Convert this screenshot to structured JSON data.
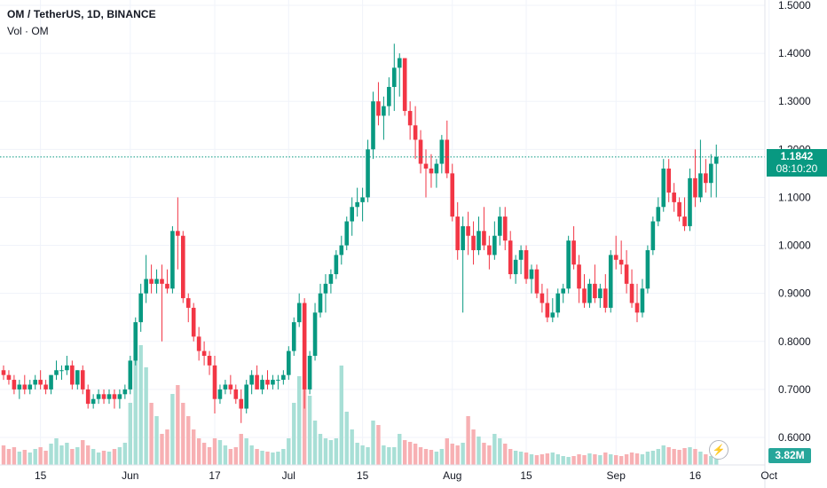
{
  "header": {
    "symbol_line": "OM / TetherUS, 1D, BINANCE",
    "volume_line": "Vol · OM"
  },
  "last_price": {
    "price": "1.1842",
    "countdown": "08:10:20",
    "color": "#089981"
  },
  "volume_badge": "3.82M",
  "icons": {
    "alert": "lightning-bolt-icon"
  },
  "colors": {
    "up": "#089981",
    "down": "#f23645",
    "vol_up": "#a8dfd6",
    "vol_down": "#f7b0b3",
    "last_line": "#089981"
  },
  "chart_data": {
    "type": "candlestick",
    "y_ticks": [
      "1.5000",
      "1.4000",
      "1.3000",
      "1.2000",
      "1.1000",
      "1.0000",
      "0.9000",
      "0.8000",
      "0.7000",
      "0.6000"
    ],
    "y_tick_values": [
      1.5,
      1.4,
      1.3,
      1.2,
      1.1,
      1.0,
      0.9,
      0.8,
      0.7,
      0.6
    ],
    "ylim": [
      0.58,
      1.52
    ],
    "x_ticks": [
      {
        "label": "15",
        "index": 7
      },
      {
        "label": "Jun",
        "index": 24
      },
      {
        "label": "17",
        "index": 40
      },
      {
        "label": "Jul",
        "index": 54
      },
      {
        "label": "15",
        "index": 68
      },
      {
        "label": "Aug",
        "index": 85
      },
      {
        "label": "15",
        "index": 99
      },
      {
        "label": "Sep",
        "index": 116
      },
      {
        "label": "16",
        "index": 131
      },
      {
        "label": "Oct",
        "index": 145
      }
    ],
    "candles": [
      [
        0.74,
        0.75,
        0.72,
        0.73
      ],
      [
        0.73,
        0.74,
        0.71,
        0.72
      ],
      [
        0.72,
        0.73,
        0.69,
        0.7
      ],
      [
        0.7,
        0.72,
        0.68,
        0.71
      ],
      [
        0.71,
        0.73,
        0.69,
        0.7
      ],
      [
        0.7,
        0.72,
        0.69,
        0.71
      ],
      [
        0.71,
        0.73,
        0.7,
        0.72
      ],
      [
        0.72,
        0.74,
        0.7,
        0.71
      ],
      [
        0.71,
        0.72,
        0.69,
        0.7
      ],
      [
        0.7,
        0.73,
        0.69,
        0.73
      ],
      [
        0.73,
        0.76,
        0.72,
        0.74
      ],
      [
        0.74,
        0.75,
        0.72,
        0.74
      ],
      [
        0.74,
        0.77,
        0.73,
        0.75
      ],
      [
        0.75,
        0.76,
        0.7,
        0.71
      ],
      [
        0.71,
        0.74,
        0.7,
        0.74
      ],
      [
        0.74,
        0.75,
        0.69,
        0.7
      ],
      [
        0.7,
        0.71,
        0.66,
        0.67
      ],
      [
        0.67,
        0.69,
        0.66,
        0.68
      ],
      [
        0.68,
        0.7,
        0.67,
        0.69
      ],
      [
        0.69,
        0.7,
        0.67,
        0.68
      ],
      [
        0.68,
        0.7,
        0.67,
        0.69
      ],
      [
        0.69,
        0.7,
        0.66,
        0.68
      ],
      [
        0.68,
        0.7,
        0.66,
        0.69
      ],
      [
        0.69,
        0.71,
        0.68,
        0.7
      ],
      [
        0.7,
        0.77,
        0.69,
        0.76
      ],
      [
        0.76,
        0.85,
        0.75,
        0.84
      ],
      [
        0.84,
        0.92,
        0.82,
        0.9
      ],
      [
        0.9,
        0.98,
        0.88,
        0.93
      ],
      [
        0.93,
        0.96,
        0.9,
        0.92
      ],
      [
        0.92,
        0.95,
        0.9,
        0.93
      ],
      [
        0.93,
        0.96,
        0.8,
        0.92
      ],
      [
        0.92,
        0.95,
        0.9,
        0.91
      ],
      [
        0.91,
        1.04,
        0.9,
        1.03
      ],
      [
        1.03,
        1.1,
        0.95,
        1.02
      ],
      [
        1.02,
        1.03,
        0.88,
        0.89
      ],
      [
        0.89,
        0.9,
        0.84,
        0.87
      ],
      [
        0.87,
        0.88,
        0.8,
        0.81
      ],
      [
        0.81,
        0.83,
        0.76,
        0.78
      ],
      [
        0.78,
        0.8,
        0.75,
        0.77
      ],
      [
        0.77,
        0.78,
        0.73,
        0.75
      ],
      [
        0.75,
        0.77,
        0.65,
        0.68
      ],
      [
        0.68,
        0.71,
        0.67,
        0.7
      ],
      [
        0.7,
        0.72,
        0.69,
        0.71
      ],
      [
        0.71,
        0.73,
        0.69,
        0.7
      ],
      [
        0.7,
        0.71,
        0.67,
        0.68
      ],
      [
        0.68,
        0.7,
        0.63,
        0.66
      ],
      [
        0.66,
        0.72,
        0.65,
        0.71
      ],
      [
        0.71,
        0.74,
        0.69,
        0.73
      ],
      [
        0.73,
        0.75,
        0.7,
        0.7
      ],
      [
        0.7,
        0.73,
        0.69,
        0.72
      ],
      [
        0.72,
        0.74,
        0.7,
        0.71
      ],
      [
        0.71,
        0.73,
        0.7,
        0.72
      ],
      [
        0.72,
        0.73,
        0.7,
        0.72
      ],
      [
        0.72,
        0.74,
        0.71,
        0.73
      ],
      [
        0.73,
        0.79,
        0.72,
        0.78
      ],
      [
        0.78,
        0.85,
        0.77,
        0.84
      ],
      [
        0.84,
        0.9,
        0.83,
        0.88
      ],
      [
        0.88,
        0.89,
        0.66,
        0.7
      ],
      [
        0.7,
        0.78,
        0.69,
        0.77
      ],
      [
        0.77,
        0.88,
        0.76,
        0.86
      ],
      [
        0.86,
        0.92,
        0.85,
        0.9
      ],
      [
        0.9,
        0.94,
        0.86,
        0.92
      ],
      [
        0.92,
        0.95,
        0.9,
        0.94
      ],
      [
        0.94,
        0.99,
        0.93,
        0.98
      ],
      [
        0.98,
        1.02,
        0.96,
        1.0
      ],
      [
        1.0,
        1.06,
        0.99,
        1.05
      ],
      [
        1.05,
        1.1,
        1.02,
        1.08
      ],
      [
        1.08,
        1.12,
        1.06,
        1.09
      ],
      [
        1.09,
        1.12,
        1.05,
        1.1
      ],
      [
        1.1,
        1.22,
        1.09,
        1.2
      ],
      [
        1.2,
        1.32,
        1.18,
        1.3
      ],
      [
        1.3,
        1.34,
        1.25,
        1.27
      ],
      [
        1.27,
        1.31,
        1.22,
        1.29
      ],
      [
        1.29,
        1.35,
        1.27,
        1.33
      ],
      [
        1.33,
        1.42,
        1.28,
        1.37
      ],
      [
        1.37,
        1.4,
        1.31,
        1.39
      ],
      [
        1.39,
        1.39,
        1.27,
        1.28
      ],
      [
        1.28,
        1.3,
        1.22,
        1.25
      ],
      [
        1.25,
        1.29,
        1.18,
        1.22
      ],
      [
        1.22,
        1.24,
        1.15,
        1.17
      ],
      [
        1.17,
        1.2,
        1.1,
        1.16
      ],
      [
        1.16,
        1.19,
        1.12,
        1.15
      ],
      [
        1.15,
        1.18,
        1.12,
        1.17
      ],
      [
        1.17,
        1.23,
        1.15,
        1.22
      ],
      [
        1.22,
        1.26,
        1.14,
        1.15
      ],
      [
        1.15,
        1.17,
        1.05,
        1.06
      ],
      [
        1.06,
        1.09,
        0.97,
        0.99
      ],
      [
        0.99,
        1.06,
        0.86,
        1.04
      ],
      [
        1.04,
        1.07,
        0.98,
        1.02
      ],
      [
        1.02,
        1.05,
        0.96,
        0.99
      ],
      [
        0.99,
        1.06,
        0.98,
        1.03
      ],
      [
        1.03,
        1.08,
        0.99,
        1.0
      ],
      [
        1.0,
        1.02,
        0.95,
        0.98
      ],
      [
        0.98,
        1.05,
        0.97,
        1.02
      ],
      [
        1.02,
        1.08,
        1.0,
        1.06
      ],
      [
        1.06,
        1.08,
        0.99,
        1.01
      ],
      [
        1.01,
        1.03,
        0.93,
        0.94
      ],
      [
        0.94,
        0.98,
        0.92,
        0.97
      ],
      [
        0.97,
        1.0,
        0.94,
        0.99
      ],
      [
        0.99,
        1.0,
        0.92,
        0.93
      ],
      [
        0.93,
        0.96,
        0.9,
        0.95
      ],
      [
        0.95,
        0.96,
        0.89,
        0.9
      ],
      [
        0.9,
        0.92,
        0.86,
        0.88
      ],
      [
        0.88,
        0.91,
        0.84,
        0.85
      ],
      [
        0.85,
        0.89,
        0.84,
        0.86
      ],
      [
        0.86,
        0.91,
        0.85,
        0.9
      ],
      [
        0.9,
        0.92,
        0.88,
        0.91
      ],
      [
        0.91,
        1.02,
        0.9,
        1.01
      ],
      [
        1.01,
        1.04,
        0.95,
        0.96
      ],
      [
        0.96,
        0.98,
        0.88,
        0.91
      ],
      [
        0.91,
        0.94,
        0.87,
        0.88
      ],
      [
        0.88,
        0.93,
        0.87,
        0.92
      ],
      [
        0.92,
        0.96,
        0.88,
        0.89
      ],
      [
        0.89,
        0.92,
        0.87,
        0.91
      ],
      [
        0.91,
        0.94,
        0.86,
        0.87
      ],
      [
        0.87,
        0.99,
        0.86,
        0.98
      ],
      [
        0.98,
        1.02,
        0.95,
        0.97
      ],
      [
        0.97,
        1.01,
        0.94,
        0.96
      ],
      [
        0.96,
        0.99,
        0.9,
        0.92
      ],
      [
        0.92,
        0.95,
        0.87,
        0.88
      ],
      [
        0.88,
        0.92,
        0.84,
        0.86
      ],
      [
        0.86,
        0.93,
        0.85,
        0.91
      ],
      [
        0.91,
        1.0,
        0.9,
        0.99
      ],
      [
        0.99,
        1.06,
        0.98,
        1.05
      ],
      [
        1.05,
        1.1,
        1.04,
        1.08
      ],
      [
        1.08,
        1.18,
        1.07,
        1.16
      ],
      [
        1.16,
        1.18,
        1.09,
        1.11
      ],
      [
        1.11,
        1.13,
        1.07,
        1.09
      ],
      [
        1.09,
        1.1,
        1.05,
        1.06
      ],
      [
        1.06,
        1.1,
        1.03,
        1.04
      ],
      [
        1.04,
        1.16,
        1.03,
        1.14
      ],
      [
        1.14,
        1.2,
        1.08,
        1.1
      ],
      [
        1.1,
        1.22,
        1.09,
        1.15
      ],
      [
        1.15,
        1.18,
        1.11,
        1.13
      ],
      [
        1.13,
        1.19,
        1.1,
        1.17
      ],
      [
        1.17,
        1.21,
        1.1,
        1.1842
      ]
    ],
    "volumes": [
      22,
      18,
      20,
      15,
      17,
      14,
      18,
      20,
      16,
      24,
      30,
      22,
      25,
      18,
      20,
      28,
      22,
      18,
      14,
      16,
      15,
      18,
      20,
      25,
      70,
      120,
      135,
      110,
      70,
      55,
      35,
      40,
      80,
      90,
      70,
      55,
      40,
      30,
      25,
      20,
      30,
      28,
      22,
      18,
      20,
      35,
      30,
      22,
      18,
      16,
      15,
      14,
      15,
      18,
      30,
      70,
      100,
      88,
      78,
      50,
      35,
      30,
      28,
      30,
      112,
      60,
      40,
      25,
      22,
      20,
      50,
      45,
      22,
      20,
      20,
      35,
      28,
      26,
      24,
      20,
      18,
      17,
      15,
      18,
      30,
      24,
      22,
      25,
      55,
      40,
      32,
      25,
      22,
      35,
      30,
      24,
      18,
      16,
      15,
      14,
      12,
      11,
      12,
      13,
      14,
      12,
      10,
      9,
      10,
      12,
      11,
      13,
      12,
      11,
      14,
      12,
      11,
      10,
      12,
      14,
      13,
      12,
      15,
      16,
      18,
      22,
      20,
      18,
      17,
      19,
      20,
      18,
      15,
      12,
      10,
      10
    ]
  }
}
